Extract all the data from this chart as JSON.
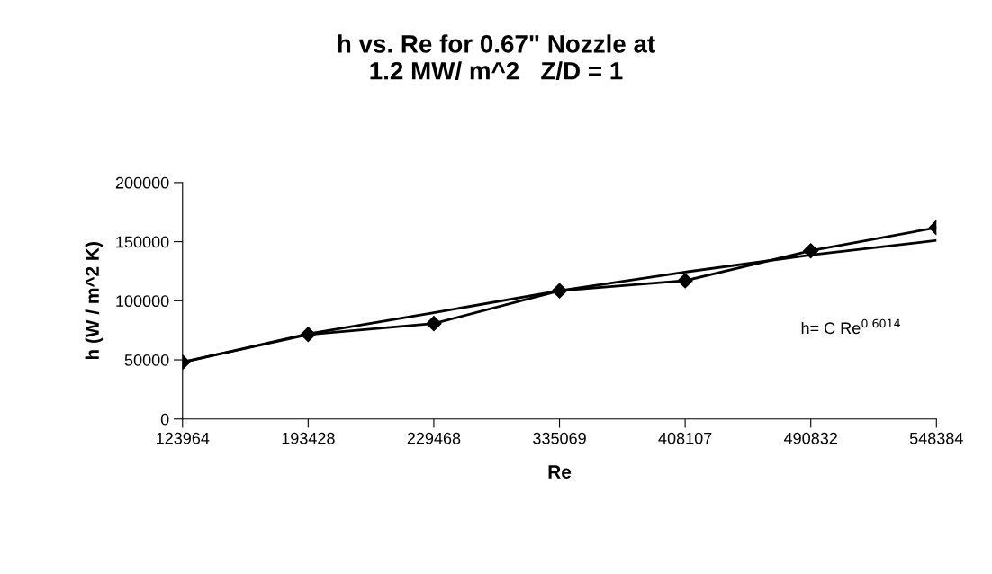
{
  "chart_data": {
    "type": "line",
    "title": "h vs. Re for 0.67\" Nozzle at\n1.2 MW/ m^2   Z/D = 1",
    "xlabel": "Re",
    "ylabel": "h (W / m^2 K)",
    "categories": [
      "123964",
      "193428",
      "229468",
      "335069",
      "408107",
      "490832",
      "548384"
    ],
    "series": [
      {
        "color": "#000000",
        "marker": "diamond",
        "values": [
          48000,
          71500,
          80700,
          108500,
          117000,
          142300,
          161900
        ]
      },
      {
        "color": "#000000",
        "marker": "none",
        "values": [
          48000,
          72000,
          89900,
          108500,
          124300,
          138800,
          151000
        ]
      }
    ],
    "ylim": [
      0,
      200000
    ],
    "yticks": [
      0,
      50000,
      100000,
      150000,
      200000
    ],
    "grid": false,
    "legend": false,
    "annotations": [
      {
        "text": "h= C Re$^{0.6014}$"
      }
    ]
  }
}
